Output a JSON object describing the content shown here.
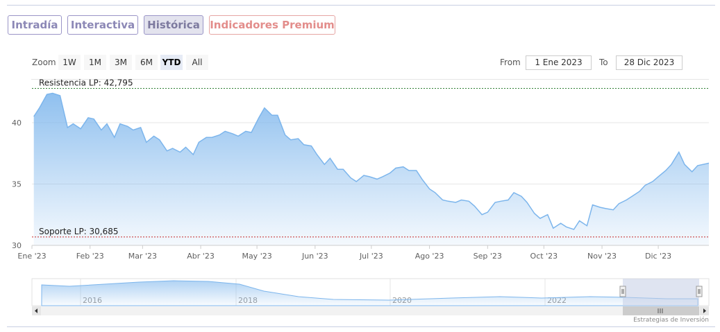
{
  "tabs": [
    {
      "label": "Intradía"
    },
    {
      "label": "Interactiva"
    },
    {
      "label": "Histórica"
    },
    {
      "label": "Indicadores Premium"
    }
  ],
  "toolbar": {
    "zoom_label": "Zoom",
    "zoom_buttons": [
      "1W",
      "1M",
      "3M",
      "6M",
      "YTD",
      "All"
    ],
    "selected_zoom": "YTD",
    "from_label": "From",
    "from_value": "1 Ene 2023",
    "to_label": "To",
    "to_value": "28 Dic 2023"
  },
  "credits": "Estrategias de Inversión",
  "colors": {
    "line": "#7cb5ec",
    "resistance": "#2e7d32",
    "support": "#c62828",
    "navigator_mask": "#c5cde6"
  },
  "chart_data": {
    "type": "area",
    "x_axis_labels": [
      "Ene '23",
      "Feb '23",
      "Mar '23",
      "Abr '23",
      "May '23",
      "Jun '23",
      "Jul '23",
      "Ago '23",
      "Sep '23",
      "Oct '23",
      "Nov '23",
      "Dic '23"
    ],
    "y_tick_labels": [
      "30",
      "35",
      "40"
    ],
    "ylim": [
      30,
      43.5
    ],
    "xlim": [
      "2023-01-01",
      "2023-12-28"
    ],
    "grid": true,
    "lines": [
      {
        "label": "Resistencia LP: 42,795",
        "value": 42.795
      },
      {
        "label": "Soporte LP: 30,685",
        "value": 30.685
      }
    ],
    "series": [
      {
        "x": [
          "2023-01-02",
          "2023-01-05",
          "2023-01-09",
          "2023-01-12",
          "2023-01-16",
          "2023-01-20",
          "2023-01-23",
          "2023-01-27",
          "2023-01-31",
          "2023-02-03",
          "2023-02-07",
          "2023-02-10",
          "2023-02-14",
          "2023-02-17",
          "2023-02-21",
          "2023-02-24",
          "2023-02-28",
          "2023-03-03",
          "2023-03-07",
          "2023-03-10",
          "2023-03-14",
          "2023-03-17",
          "2023-03-21",
          "2023-03-24",
          "2023-03-28",
          "2023-03-31",
          "2023-04-04",
          "2023-04-07",
          "2023-04-11",
          "2023-04-14",
          "2023-04-18",
          "2023-04-21",
          "2023-04-25",
          "2023-04-28",
          "2023-05-02",
          "2023-05-05",
          "2023-05-09",
          "2023-05-12",
          "2023-05-16",
          "2023-05-19",
          "2023-05-23",
          "2023-05-26",
          "2023-05-30",
          "2023-06-02",
          "2023-06-06",
          "2023-06-09",
          "2023-06-13",
          "2023-06-16",
          "2023-06-20",
          "2023-06-23",
          "2023-06-27",
          "2023-06-30",
          "2023-07-04",
          "2023-07-07",
          "2023-07-11",
          "2023-07-14",
          "2023-07-18",
          "2023-07-21",
          "2023-07-25",
          "2023-07-28",
          "2023-08-01",
          "2023-08-04",
          "2023-08-08",
          "2023-08-11",
          "2023-08-15",
          "2023-08-18",
          "2023-08-22",
          "2023-08-25",
          "2023-08-29",
          "2023-09-01",
          "2023-09-05",
          "2023-09-08",
          "2023-09-12",
          "2023-09-15",
          "2023-09-19",
          "2023-09-22",
          "2023-09-26",
          "2023-09-29",
          "2023-10-03",
          "2023-10-06",
          "2023-10-10",
          "2023-10-13",
          "2023-10-17",
          "2023-10-20",
          "2023-10-24",
          "2023-10-27",
          "2023-10-31",
          "2023-11-03",
          "2023-11-07",
          "2023-11-10",
          "2023-11-14",
          "2023-11-17",
          "2023-11-21",
          "2023-11-24",
          "2023-11-28",
          "2023-12-01",
          "2023-12-05",
          "2023-12-08",
          "2023-12-12",
          "2023-12-15",
          "2023-12-19",
          "2023-12-22",
          "2023-12-28"
        ],
        "y": [
          40.5,
          41.2,
          42.3,
          42.4,
          42.2,
          39.6,
          39.9,
          39.5,
          40.4,
          40.3,
          39.4,
          39.9,
          38.8,
          39.9,
          39.7,
          39.4,
          39.6,
          38.4,
          38.9,
          38.6,
          37.7,
          37.9,
          37.6,
          38.0,
          37.4,
          38.4,
          38.8,
          38.8,
          39.0,
          39.3,
          39.1,
          38.9,
          39.3,
          39.2,
          40.4,
          41.2,
          40.6,
          40.6,
          39.0,
          38.6,
          38.7,
          38.2,
          38.1,
          37.4,
          36.6,
          37.1,
          36.2,
          36.2,
          35.5,
          35.2,
          35.7,
          35.6,
          35.4,
          35.6,
          35.9,
          36.3,
          36.4,
          36.1,
          36.1,
          35.4,
          34.6,
          34.3,
          33.7,
          33.6,
          33.5,
          33.7,
          33.6,
          33.2,
          32.5,
          32.7,
          33.5,
          33.6,
          33.7,
          34.3,
          34.0,
          33.5,
          32.6,
          32.2,
          32.5,
          31.4,
          31.8,
          31.5,
          31.3,
          32.0,
          31.6,
          33.3,
          33.1,
          33.0,
          32.9,
          33.4,
          33.7,
          34.0,
          34.4,
          34.9,
          35.2,
          35.6,
          36.1,
          36.6,
          37.6,
          36.6,
          36.0,
          36.5,
          36.7
        ]
      }
    ],
    "navigator": {
      "x_axis_labels": [
        "2016",
        "2018",
        "2020",
        "2022"
      ]
    }
  }
}
